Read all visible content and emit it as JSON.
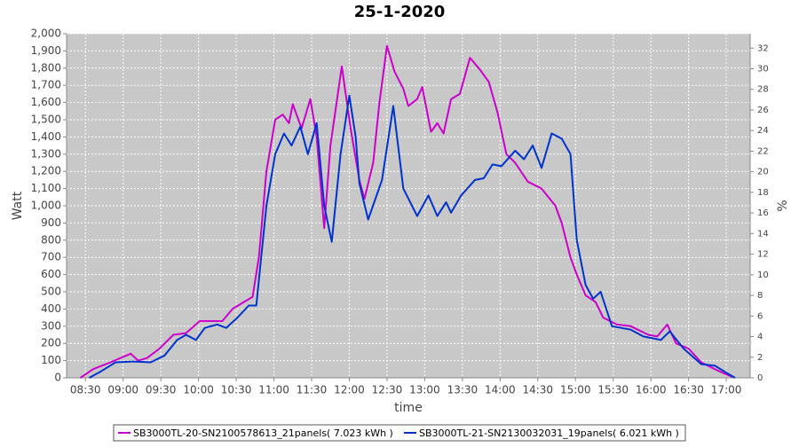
{
  "chart_data": {
    "type": "line",
    "title": "25-1-2020",
    "x_label": "time",
    "y_label": "Watt",
    "y2_label": "%",
    "xlim": [
      495,
      1039
    ],
    "ylim": [
      0,
      2000
    ],
    "y2lim": [
      0,
      33.4
    ],
    "xticks": [
      {
        "value": 510,
        "label": "08:30"
      },
      {
        "value": 540,
        "label": "09:00"
      },
      {
        "value": 570,
        "label": "09:30"
      },
      {
        "value": 600,
        "label": "10:00"
      },
      {
        "value": 630,
        "label": "10:30"
      },
      {
        "value": 660,
        "label": "11:00"
      },
      {
        "value": 690,
        "label": "11:30"
      },
      {
        "value": 720,
        "label": "12:00"
      },
      {
        "value": 750,
        "label": "12:30"
      },
      {
        "value": 780,
        "label": "13:00"
      },
      {
        "value": 810,
        "label": "13:30"
      },
      {
        "value": 840,
        "label": "14:00"
      },
      {
        "value": 870,
        "label": "14:30"
      },
      {
        "value": 900,
        "label": "15:00"
      },
      {
        "value": 930,
        "label": "15:30"
      },
      {
        "value": 960,
        "label": "16:00"
      },
      {
        "value": 990,
        "label": "16:30"
      },
      {
        "value": 1020,
        "label": "17:00"
      }
    ],
    "yticks": [
      0,
      100,
      200,
      300,
      400,
      500,
      600,
      700,
      800,
      900,
      {
        "value": 1000,
        "label": "1,000"
      },
      {
        "value": 1100,
        "label": "1,100"
      },
      {
        "value": 1200,
        "label": "1,200"
      },
      {
        "value": 1300,
        "label": "1,300"
      },
      {
        "value": 1400,
        "label": "1,400"
      },
      {
        "value": 1500,
        "label": "1,500"
      },
      {
        "value": 1600,
        "label": "1,600"
      },
      {
        "value": 1700,
        "label": "1,700"
      },
      {
        "value": 1800,
        "label": "1,800"
      },
      {
        "value": 1900,
        "label": "1,900"
      },
      {
        "value": 2000,
        "label": "2,000"
      }
    ],
    "y2ticks": [
      0,
      2,
      4,
      6,
      8,
      10,
      12,
      14,
      16,
      18,
      20,
      22,
      24,
      26,
      28,
      30,
      32
    ],
    "grid": true,
    "series": [
      {
        "name": "SB3000TL-20-SN2100578613_21panels( 7.023 kWh )",
        "color": "#cc00cc",
        "x": [
          506,
          516,
          530,
          546,
          552,
          559,
          569,
          580,
          590,
          601,
          619,
          627,
          636,
          643,
          648,
          654,
          661,
          667,
          672,
          675,
          682,
          689,
          694,
          700,
          705,
          714,
          721,
          728,
          732,
          739,
          744,
          750,
          756,
          763,
          767,
          774,
          778,
          785,
          790,
          795,
          801,
          808,
          816,
          824,
          831,
          838,
          845,
          852,
          862,
          873,
          884,
          889,
          896,
          901,
          908,
          916,
          922,
          933,
          944,
          958,
          965,
          973,
          980,
          990,
          1000,
          1011,
          1020,
          1025
        ],
        "values": [
          0,
          50,
          90,
          140,
          100,
          115,
          170,
          250,
          260,
          330,
          330,
          400,
          440,
          470,
          700,
          1200,
          1500,
          1530,
          1480,
          1590,
          1450,
          1620,
          1400,
          870,
          1350,
          1810,
          1450,
          1150,
          1040,
          1250,
          1600,
          1930,
          1780,
          1680,
          1580,
          1620,
          1690,
          1430,
          1480,
          1420,
          1620,
          1650,
          1860,
          1790,
          1720,
          1540,
          1300,
          1250,
          1140,
          1100,
          1000,
          900,
          700,
          600,
          480,
          440,
          350,
          310,
          300,
          250,
          240,
          310,
          200,
          170,
          90,
          50,
          20,
          5
        ]
      },
      {
        "name": "SB3000TL-21-SN2130032031_19panels( 6.021 kWh )",
        "color": "#0033cc",
        "x": [
          513,
          523,
          534,
          548,
          562,
          573,
          583,
          590,
          598,
          605,
          615,
          622,
          631,
          640,
          646,
          654,
          661,
          668,
          674,
          681,
          687,
          694,
          700,
          706,
          713,
          720,
          725,
          728,
          735,
          746,
          755,
          763,
          774,
          783,
          790,
          797,
          801,
          809,
          820,
          827,
          834,
          841,
          852,
          859,
          866,
          873,
          881,
          889,
          896,
          901,
          908,
          914,
          920,
          929,
          944,
          954,
          968,
          975,
          986,
          1000,
          1011,
          1020,
          1027
        ],
        "values": [
          0,
          40,
          90,
          95,
          90,
          130,
          220,
          250,
          220,
          290,
          310,
          290,
          350,
          420,
          420,
          1000,
          1300,
          1420,
          1350,
          1460,
          1300,
          1480,
          1000,
          790,
          1300,
          1640,
          1400,
          1130,
          920,
          1150,
          1580,
          1100,
          940,
          1060,
          940,
          1020,
          960,
          1060,
          1150,
          1160,
          1240,
          1230,
          1320,
          1270,
          1350,
          1220,
          1420,
          1390,
          1300,
          800,
          540,
          460,
          500,
          300,
          280,
          240,
          220,
          270,
          170,
          80,
          70,
          30,
          0
        ]
      }
    ]
  }
}
